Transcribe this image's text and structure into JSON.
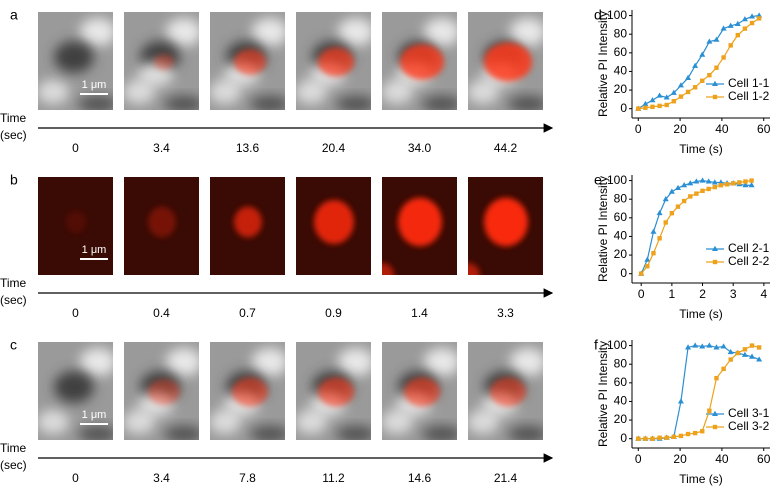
{
  "panels": [
    {
      "label": "a",
      "scale_bar": "1 μm",
      "time_label": [
        "Time",
        "(sec)"
      ],
      "times": [
        "0",
        "3.4",
        "13.6",
        "20.4",
        "34.0",
        "44.2"
      ]
    },
    {
      "label": "b",
      "scale_bar": "1 μm",
      "time_label": [
        "Time",
        "(sec)"
      ],
      "times": [
        "0",
        "0.4",
        "0.7",
        "0.9",
        "1.4",
        "3.3"
      ]
    },
    {
      "label": "c",
      "scale_bar": "1 μm",
      "time_label": [
        "Time",
        "(sec)"
      ],
      "times": [
        "0",
        "3.4",
        "7.8",
        "11.2",
        "14.6",
        "21.4"
      ]
    }
  ],
  "chart_data": [
    {
      "type": "line",
      "label": "d",
      "xlabel": "Time (s)",
      "ylabel": "Relative PI Intensity",
      "x": [
        0,
        3.4,
        6.8,
        10.2,
        13.6,
        17,
        20.4,
        23.8,
        27.2,
        30.6,
        34,
        37.4,
        40.8,
        44.2,
        47.6,
        51,
        54.4,
        57.8
      ],
      "series": [
        {
          "name": "Cell 1-1",
          "color": "#2b8fd3",
          "marker": "triangle",
          "values": [
            0,
            5,
            9,
            14,
            12,
            17,
            25,
            33,
            46,
            58,
            72,
            74,
            86,
            89,
            91,
            96,
            99,
            100
          ]
        },
        {
          "name": "Cell 1-2",
          "color": "#eea21b",
          "marker": "square",
          "values": [
            0,
            1,
            2,
            3,
            4,
            8,
            13,
            18,
            23,
            30,
            36,
            44,
            55,
            68,
            79,
            86,
            92,
            97
          ]
        }
      ],
      "xlim": [
        -3,
        63
      ],
      "xticks": [
        0,
        20,
        40,
        60
      ],
      "ylim": [
        -10,
        106
      ],
      "yticks": [
        0,
        20,
        40,
        60,
        80,
        100
      ],
      "legend": "lower-right"
    },
    {
      "type": "line",
      "label": "e",
      "xlabel": "Time (s)",
      "ylabel": "Relative PI Intensity",
      "x": [
        0,
        0.2,
        0.4,
        0.6,
        0.8,
        1,
        1.2,
        1.4,
        1.6,
        1.8,
        2,
        2.2,
        2.4,
        2.6,
        2.8,
        3,
        3.2,
        3.4,
        3.6
      ],
      "series": [
        {
          "name": "Cell 2-1",
          "color": "#2b8fd3",
          "marker": "triangle",
          "values": [
            0,
            15,
            45,
            65,
            80,
            88,
            92,
            95,
            97,
            99,
            100,
            99,
            98,
            98,
            97,
            97,
            96,
            95,
            95
          ]
        },
        {
          "name": "Cell 2-2",
          "color": "#eea21b",
          "marker": "square",
          "values": [
            0,
            8,
            22,
            38,
            55,
            65,
            72,
            78,
            83,
            86,
            89,
            91,
            93,
            95,
            96,
            97,
            98,
            99,
            100
          ]
        }
      ],
      "xlim": [
        -0.3,
        4.2
      ],
      "xticks": [
        0,
        1,
        2,
        3,
        4
      ],
      "ylim": [
        -10,
        106
      ],
      "yticks": [
        0,
        20,
        40,
        60,
        80,
        100
      ],
      "legend": "lower-right"
    },
    {
      "type": "line",
      "label": "f",
      "xlabel": "Time (s)",
      "ylabel": "Relative PI Intensity",
      "x": [
        0,
        3.4,
        6.8,
        10.2,
        13.6,
        17,
        20.4,
        23.8,
        27.2,
        30.6,
        34,
        37.4,
        40.8,
        44.2,
        47.6,
        51,
        54.4,
        57.8
      ],
      "series": [
        {
          "name": "Cell 3-1",
          "color": "#2b8fd3",
          "marker": "triangle",
          "values": [
            0,
            0,
            0,
            0,
            1,
            2,
            40,
            98,
            100,
            99,
            100,
            98,
            99,
            93,
            92,
            90,
            88,
            85
          ]
        },
        {
          "name": "Cell 3-2",
          "color": "#eea21b",
          "marker": "square",
          "values": [
            0,
            0,
            0,
            1,
            1,
            2,
            3,
            5,
            6,
            8,
            30,
            65,
            75,
            85,
            92,
            96,
            100,
            98
          ]
        }
      ],
      "xlim": [
        -3,
        63
      ],
      "xticks": [
        0,
        20,
        40,
        60
      ],
      "ylim": [
        -10,
        106
      ],
      "yticks": [
        0,
        20,
        40,
        60,
        80,
        100
      ],
      "legend": "lower-right"
    }
  ]
}
